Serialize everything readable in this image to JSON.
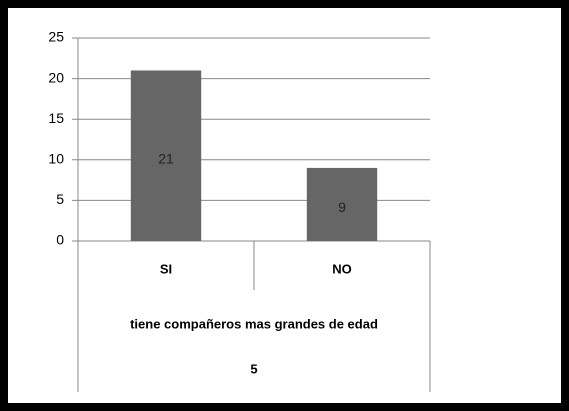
{
  "chart_data": {
    "type": "bar",
    "categories": [
      "SI",
      "NO"
    ],
    "values": [
      21,
      9
    ],
    "color": "#666666",
    "xlabel": "tiene compañeros mas grandes de edad",
    "group_label": "5",
    "ylim": [
      0,
      25
    ],
    "yticks": [
      0,
      5,
      10,
      15,
      20,
      25
    ],
    "grid": true
  }
}
